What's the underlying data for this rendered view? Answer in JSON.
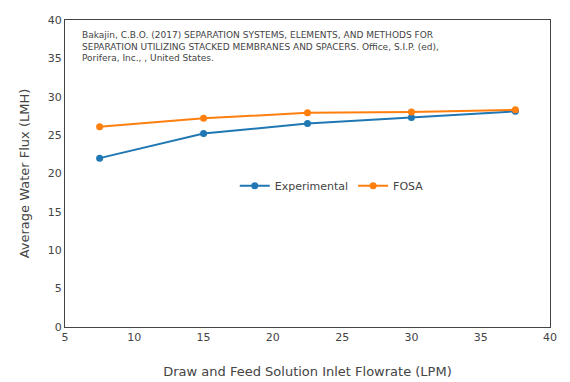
{
  "chart_data": {
    "type": "line",
    "xlabel": "Draw and Feed Solution Inlet Flowrate (LPM)",
    "ylabel": "Average Water Flux (LMH)",
    "series": [
      {
        "name": "Experimental",
        "x": [
          7.5,
          15,
          22.5,
          30,
          37.5
        ],
        "values": [
          22.0,
          25.2,
          26.5,
          27.3,
          28.1
        ],
        "marker": "circle"
      },
      {
        "name": "FOSA",
        "x": [
          7.5,
          15,
          22.5,
          30,
          37.5
        ],
        "values": [
          26.1,
          27.2,
          27.9,
          28.0,
          28.3
        ],
        "marker": "circle"
      }
    ],
    "xlim": [
      5,
      40
    ],
    "ylim": [
      0,
      40
    ],
    "xticks": [
      5,
      10,
      15,
      20,
      25,
      30,
      35,
      40
    ],
    "yticks": [
      0,
      5,
      10,
      15,
      20,
      25,
      30,
      35,
      40
    ],
    "annotations": [
      "Bakajin, C.B.O. (2017) SEPARATION SYSTEMS, ELEMENTS, AND METHODS FOR",
      "SEPARATION UTILIZING STACKED MEMBRANES AND SPACERS. Office, S.I.P. (ed),",
      "Porifera, Inc., , United States."
    ],
    "grid": false,
    "legend": "center"
  }
}
